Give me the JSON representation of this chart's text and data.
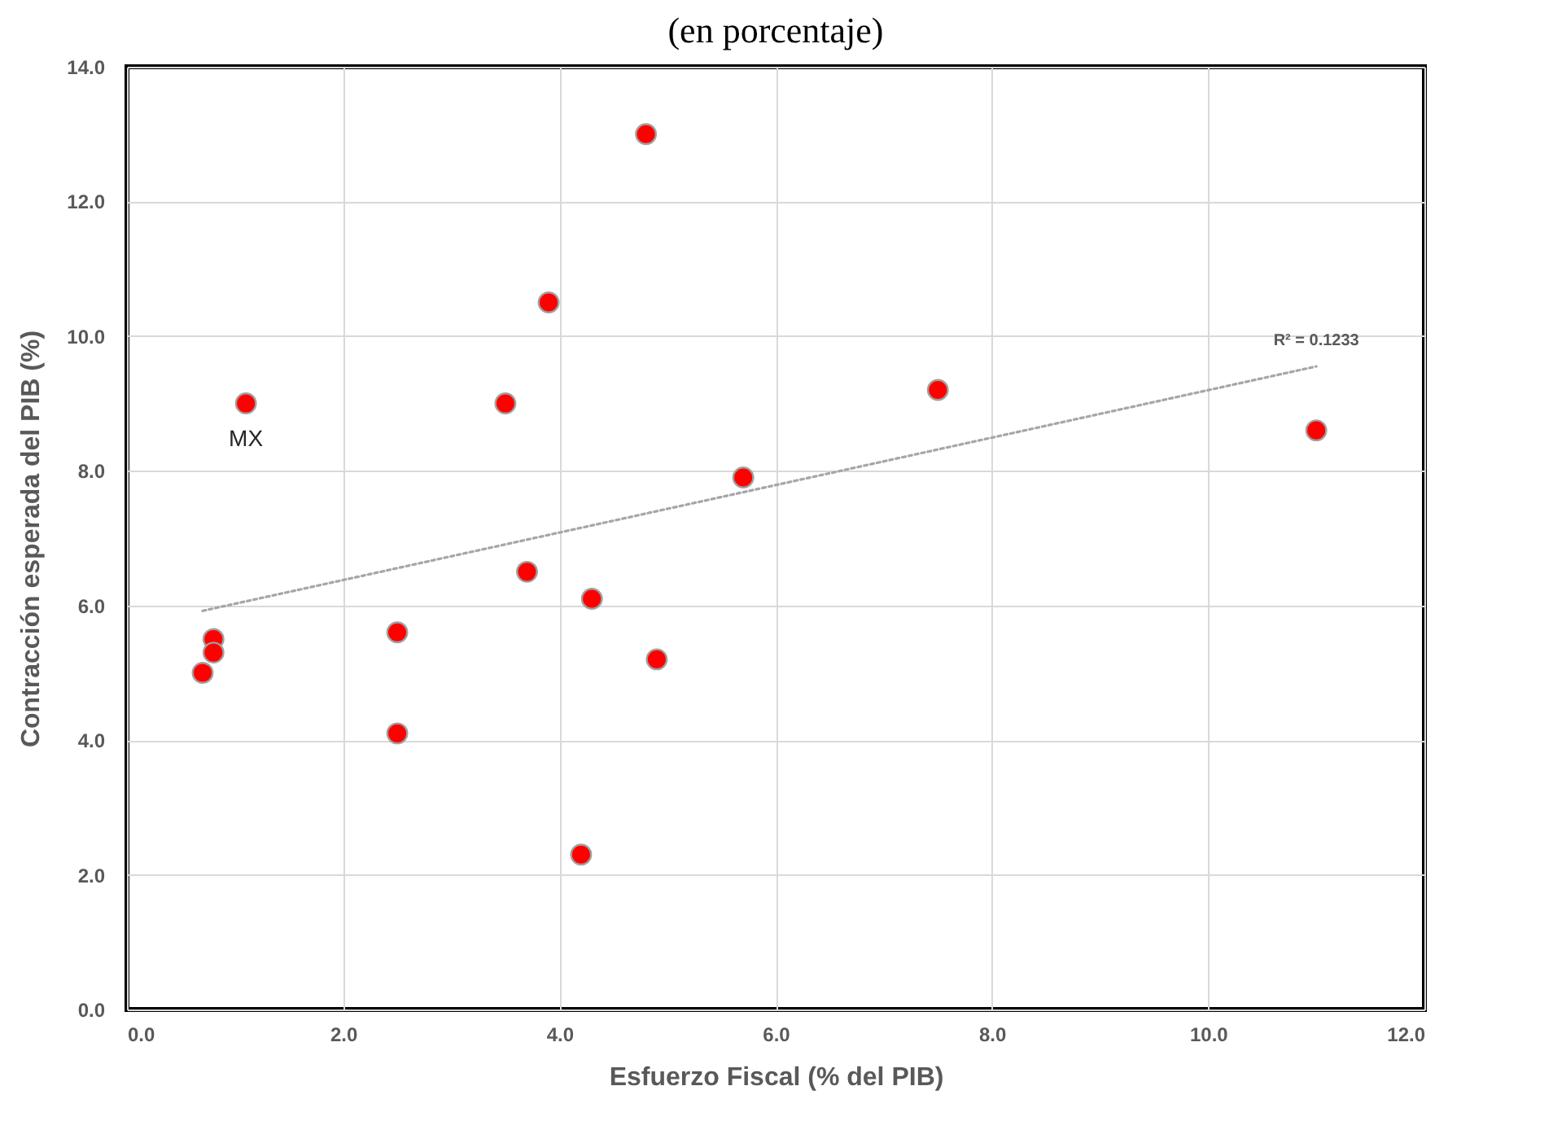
{
  "chart_data": {
    "type": "scatter",
    "title": "(en porcentaje)",
    "xlabel": "Esfuerzo Fiscal (% del PIB)",
    "ylabel": "Contracción esperada del PIB (%)",
    "xlim": [
      0,
      12
    ],
    "ylim": [
      0,
      14
    ],
    "xticks": [
      {
        "value": 0,
        "label": "0.0"
      },
      {
        "value": 2,
        "label": "2.0"
      },
      {
        "value": 4,
        "label": "4.0"
      },
      {
        "value": 6,
        "label": "6.0"
      },
      {
        "value": 8,
        "label": "8.0"
      },
      {
        "value": 10,
        "label": "10.0"
      },
      {
        "value": 12,
        "label": "12.0"
      }
    ],
    "yticks": [
      {
        "value": 0,
        "label": "0.0"
      },
      {
        "value": 2,
        "label": "2.0"
      },
      {
        "value": 4,
        "label": "4.0"
      },
      {
        "value": 6,
        "label": "6.0"
      },
      {
        "value": 8,
        "label": "8.0"
      },
      {
        "value": 10,
        "label": "10.0"
      },
      {
        "value": 12,
        "label": "12.0"
      },
      {
        "value": 14,
        "label": "14.0"
      }
    ],
    "grid": true,
    "marker": "circle",
    "series": [
      {
        "color": "#ff0000",
        "x": [
          0.7,
          0.8,
          0.8,
          1.1,
          2.5,
          2.5,
          3.5,
          3.7,
          3.9,
          4.2,
          4.3,
          4.8,
          4.9,
          5.7,
          7.5,
          11.0
        ],
        "values": [
          5.0,
          5.5,
          5.3,
          9.0,
          5.6,
          4.1,
          9.0,
          6.5,
          10.5,
          2.3,
          6.1,
          13.0,
          5.2,
          7.9,
          9.2,
          8.6
        ]
      },
      {
        "type": "line",
        "color": "#a6a6a6",
        "line_style": "dotted",
        "marker": "none",
        "x": [
          0.7,
          11.0
        ],
        "values": [
          5.92,
          9.55
        ]
      }
    ],
    "annotations": [
      {
        "text": "MX",
        "x": 1.1,
        "y": 9.0
      },
      {
        "text": "R² = 0.1233",
        "x": 11.0,
        "y": 9.55
      }
    ]
  }
}
